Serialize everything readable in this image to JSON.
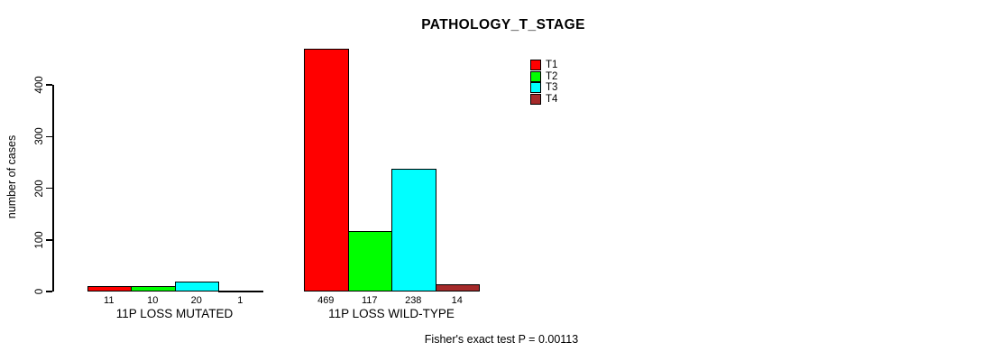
{
  "chart_data": {
    "type": "bar",
    "title": "PATHOLOGY_T_STAGE",
    "ylabel": "number of cases",
    "xlabel": "",
    "categories": [
      "11P LOSS MUTATED",
      "11P LOSS WILD-TYPE"
    ],
    "series": [
      {
        "name": "T1",
        "color": "#ff0000",
        "values": [
          11,
          469
        ]
      },
      {
        "name": "T2",
        "color": "#00ff00",
        "values": [
          10,
          117
        ]
      },
      {
        "name": "T3",
        "color": "#00ffff",
        "values": [
          20,
          238
        ]
      },
      {
        "name": "T4",
        "color": "#a52a2a",
        "values": [
          1,
          14
        ]
      }
    ],
    "yticks": [
      0,
      100,
      200,
      300,
      400
    ],
    "ylim": [
      0,
      400
    ],
    "grid": false,
    "bar_value_labels_shown": true,
    "legend": {
      "position": "top-right-inside",
      "entries": [
        "T1",
        "T2",
        "T3",
        "T4"
      ]
    },
    "annotation": "Fisher's exact test P = 0.00113"
  }
}
